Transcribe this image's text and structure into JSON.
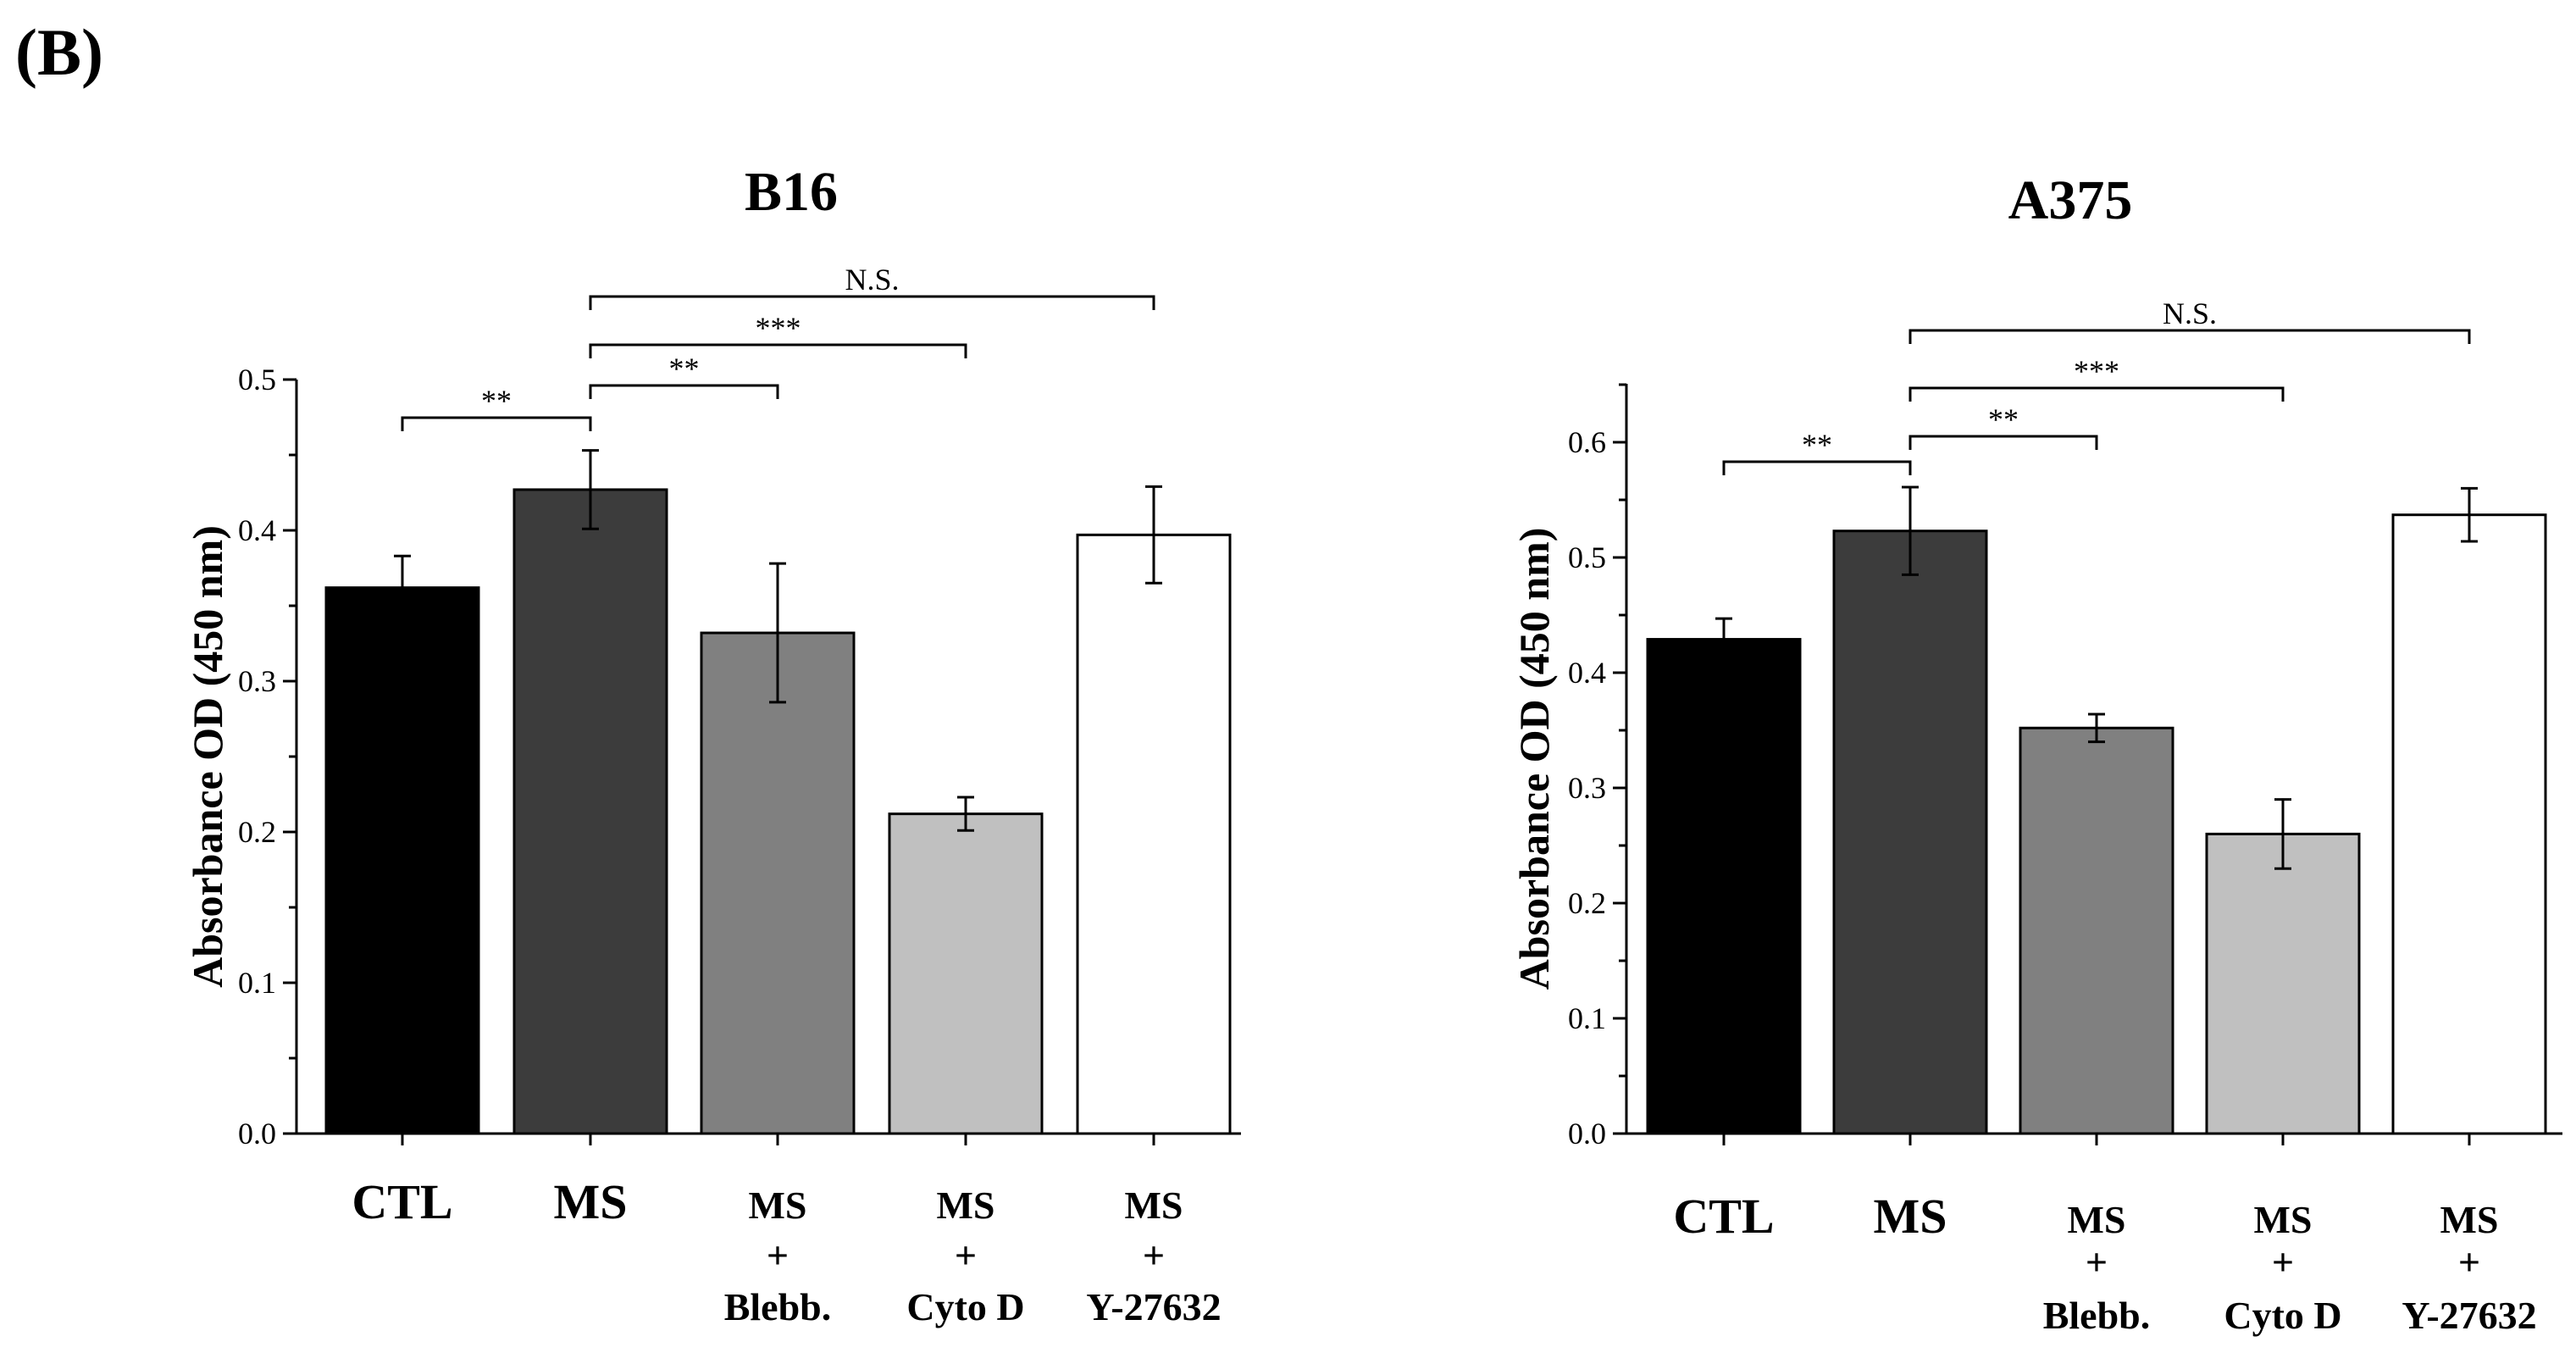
{
  "panel_label": "(B)",
  "chart_data": [
    {
      "type": "bar",
      "title": "B16",
      "xlabel": "",
      "ylabel": "Absorbance OD (450 nm)",
      "ylim": [
        0,
        0.5
      ],
      "yticks": [
        "0.0",
        "0.1",
        "0.2",
        "0.3",
        "0.4",
        "0.5"
      ],
      "ytick_values": [
        0,
        0.1,
        0.2,
        0.3,
        0.4,
        0.5
      ],
      "categories": [
        {
          "line1": "CTL",
          "line2": "",
          "line3": ""
        },
        {
          "line1": "MS",
          "line2": "",
          "line3": ""
        },
        {
          "line1": "MS",
          "line2": "+",
          "line3": "Blebb."
        },
        {
          "line1": "MS",
          "line2": "+",
          "line3": "Cyto D"
        },
        {
          "line1": "MS",
          "line2": "+",
          "line3": "Y-27632"
        }
      ],
      "values": [
        0.362,
        0.427,
        0.332,
        0.212,
        0.397
      ],
      "errors": [
        0.021,
        0.026,
        0.046,
        0.011,
        0.032
      ],
      "colors": [
        "#000000",
        "#3c3c3c",
        "#808080",
        "#c0c0c0",
        "#ffffff"
      ],
      "significance": [
        {
          "from": 0,
          "to": 1,
          "label": "**"
        },
        {
          "from": 1,
          "to": 2,
          "label": "**"
        },
        {
          "from": 1,
          "to": 3,
          "label": "***"
        },
        {
          "from": 1,
          "to": 4,
          "label": "N.S."
        }
      ]
    },
    {
      "type": "bar",
      "title": "A375",
      "xlabel": "",
      "ylabel": "Absorbance OD (450 nm)",
      "ylim": [
        0,
        0.65
      ],
      "yticks": [
        "0.0",
        "0.1",
        "0.2",
        "0.3",
        "0.4",
        "0.5",
        "0.6"
      ],
      "ytick_values": [
        0,
        0.1,
        0.2,
        0.3,
        0.4,
        0.5,
        0.6
      ],
      "categories": [
        {
          "line1": "CTL",
          "line2": "",
          "line3": ""
        },
        {
          "line1": "MS",
          "line2": "",
          "line3": ""
        },
        {
          "line1": "MS",
          "line2": "+",
          "line3": "Blebb."
        },
        {
          "line1": "MS",
          "line2": "+",
          "line3": "Cyto D"
        },
        {
          "line1": "MS",
          "line2": "+",
          "line3": "Y-27632"
        }
      ],
      "values": [
        0.429,
        0.523,
        0.352,
        0.26,
        0.537
      ],
      "errors": [
        0.018,
        0.038,
        0.012,
        0.03,
        0.023
      ],
      "colors": [
        "#000000",
        "#3c3c3c",
        "#808080",
        "#c0c0c0",
        "#ffffff"
      ],
      "significance": [
        {
          "from": 0,
          "to": 1,
          "label": "**"
        },
        {
          "from": 1,
          "to": 2,
          "label": "**"
        },
        {
          "from": 1,
          "to": 3,
          "label": "***"
        },
        {
          "from": 1,
          "to": 4,
          "label": "N.S."
        }
      ]
    }
  ]
}
